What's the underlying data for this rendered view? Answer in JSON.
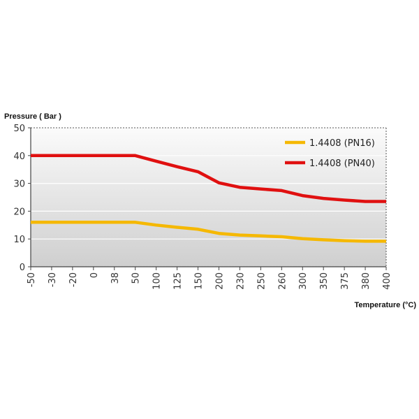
{
  "chart_data": {
    "type": "line",
    "categories": [
      "-50",
      "-30",
      "-20",
      "0",
      "38",
      "50",
      "100",
      "125",
      "150",
      "200",
      "230",
      "250",
      "260",
      "300",
      "350",
      "375",
      "380",
      "400"
    ],
    "series": [
      {
        "name": "1.4408 (PN16)",
        "color": "#f5b800",
        "values": [
          16,
          16,
          16,
          16,
          16,
          16,
          15,
          14.2,
          13.5,
          12,
          11.4,
          11.1,
          10.8,
          10.1,
          9.7,
          9.4,
          9.2,
          9.2
        ]
      },
      {
        "name": "1.4408 (PN40)",
        "color": "#e01010",
        "values": [
          40,
          40,
          40,
          40,
          40,
          40,
          38,
          36,
          34.2,
          30.2,
          28.6,
          28,
          27.4,
          25.6,
          24.6,
          24,
          23.5,
          23.5
        ]
      }
    ],
    "ylabel": "Pressure ( Bar )",
    "xlabel": "Temperature (°C)",
    "ylim": [
      0,
      50
    ],
    "yticks": [
      0,
      10,
      20,
      30,
      40,
      50
    ],
    "grid": true,
    "legend": "top-right"
  }
}
